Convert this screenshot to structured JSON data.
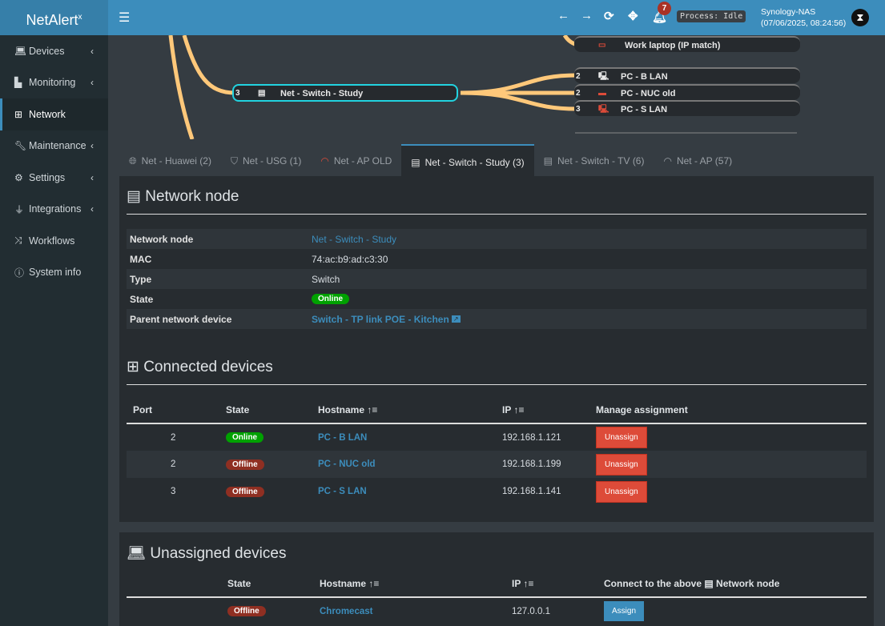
{
  "app": {
    "logo": "NetAlert",
    "logo_sup": "x"
  },
  "header": {
    "notifications": "7",
    "process": "Process: Idle",
    "host_name": "Synology-NAS",
    "host_time": "(07/06/2025, 08:24:56)"
  },
  "sidebar": {
    "items": [
      {
        "label": "Devices",
        "icon": "laptop"
      },
      {
        "label": "Monitoring",
        "icon": "chart"
      },
      {
        "label": "Network",
        "icon": "sitemap"
      },
      {
        "label": "Maintenance",
        "icon": "wrench"
      },
      {
        "label": "Settings",
        "icon": "gear"
      },
      {
        "label": "Integrations",
        "icon": "plug"
      },
      {
        "label": "Workflows",
        "icon": "shuffle"
      },
      {
        "label": "System info",
        "icon": "info"
      }
    ]
  },
  "tree": {
    "nodes": [
      {
        "label": "Work laptop (IP match)",
        "port": "",
        "color": "#dd4b39"
      },
      {
        "label": "Net - Switch - Study",
        "port": "3",
        "selected": true
      },
      {
        "label": "PC - B LAN",
        "port": "2"
      },
      {
        "label": "PC - NUC old",
        "port": "2"
      },
      {
        "label": "PC - S LAN",
        "port": "3"
      }
    ]
  },
  "tabs": [
    {
      "label": "Net - Huawei (2)",
      "icon": "globe"
    },
    {
      "label": "Net - USG (1)",
      "icon": "shield"
    },
    {
      "label": "Net - AP OLD",
      "icon": "wifi"
    },
    {
      "label": "Net - Switch - Study (3)",
      "icon": "switch",
      "active": true
    },
    {
      "label": "Net - Switch - TV (6)",
      "icon": "switch"
    },
    {
      "label": "Net - AP (57)",
      "icon": "wifi"
    }
  ],
  "node": {
    "title": "Network node",
    "rows": [
      {
        "key": "Network node",
        "value": "Net - Switch - Study"
      },
      {
        "key": "MAC",
        "value": "74:ac:b9:ad:c3:30"
      },
      {
        "key": "Type",
        "value": "Switch"
      },
      {
        "key": "State",
        "value": "Online"
      },
      {
        "key": "Parent network device",
        "value": "Switch - TP link POE - Kitchen"
      }
    ]
  },
  "connected": {
    "title": "Connected devices",
    "headers": [
      "Port",
      "State",
      "Hostname",
      "IP",
      "Manage assignment"
    ],
    "rows": [
      {
        "port": "2",
        "state": "Online",
        "hostname": "PC - B LAN",
        "ip": "192.168.1.121",
        "action": "Unassign"
      },
      {
        "port": "2",
        "state": "Offline",
        "hostname": "PC - NUC old",
        "ip": "192.168.1.199",
        "action": "Unassign"
      },
      {
        "port": "3",
        "state": "Offline",
        "hostname": "PC - S LAN",
        "ip": "192.168.1.141",
        "action": "Unassign"
      }
    ]
  },
  "unassigned": {
    "title": "Unassigned devices",
    "headers": [
      "State",
      "Hostname",
      "IP",
      "Connect to the above",
      "Network node"
    ],
    "rows": [
      {
        "state": "Offline",
        "hostname": "Chromecast",
        "ip": "127.0.0.1",
        "action": "Assign"
      }
    ]
  }
}
